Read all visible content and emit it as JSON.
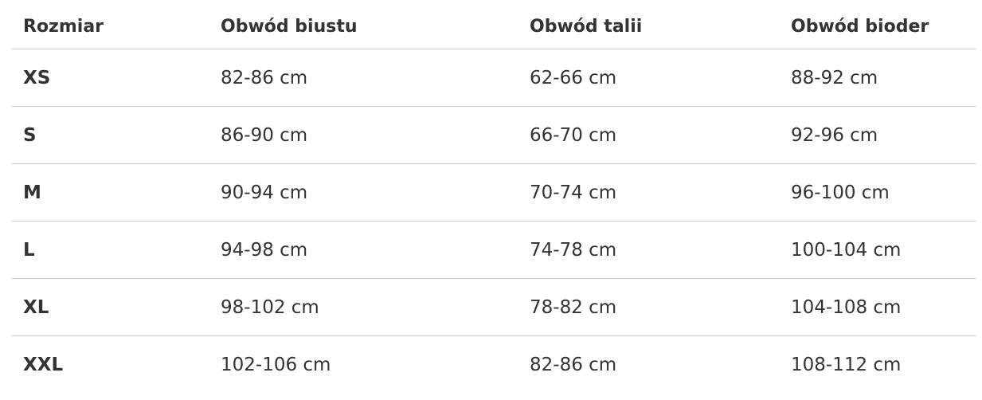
{
  "table": {
    "header": [
      "Rozmiar",
      "Obwód biustu",
      "Obwód talii",
      "Obwód bioder"
    ],
    "rows": [
      [
        "XS",
        "82-86 cm",
        "62-66 cm",
        "88-92 cm"
      ],
      [
        "S",
        "86-90 cm",
        "66-70 cm",
        "92-96 cm"
      ],
      [
        "M",
        "90-94 cm",
        "70-74 cm",
        "96-100 cm"
      ],
      [
        "L",
        "94-98 cm",
        "74-78 cm",
        "100-104 cm"
      ],
      [
        "XL",
        "98-102 cm",
        "78-82 cm",
        "104-108 cm"
      ],
      [
        "XXL",
        "102-106 cm",
        "82-86 cm",
        "108-112 cm"
      ]
    ]
  }
}
